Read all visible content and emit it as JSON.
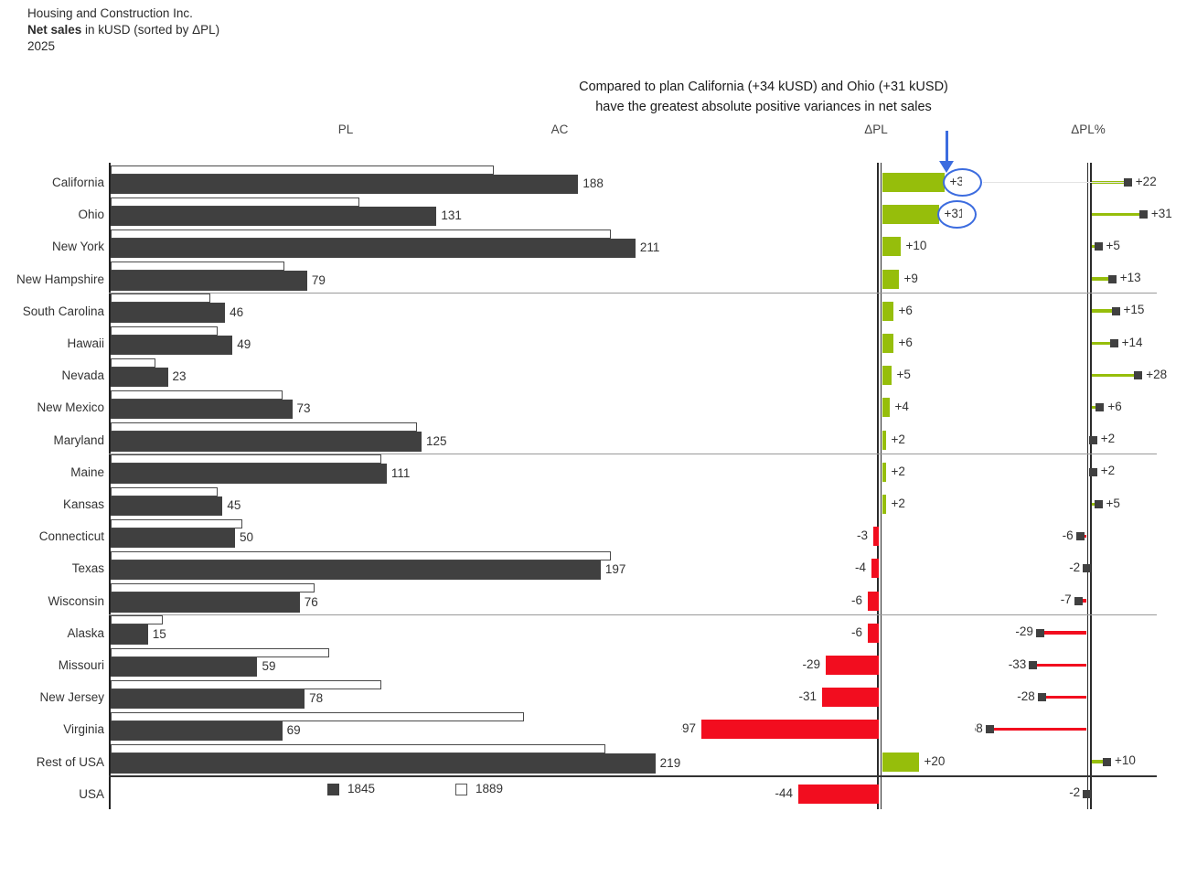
{
  "title": {
    "company": "Housing and Construction Inc.",
    "measure": "Net sales",
    "measure_suffix": " in kUSD (sorted by ΔPL)",
    "period": "2025"
  },
  "annotation": {
    "line1": "Compared to plan California (+34 kUSD) and Ohio (+31 kUSD)",
    "line2": "have the greatest absolute positive variances in net sales"
  },
  "headers": {
    "pl": "PL",
    "ac": "AC",
    "dpl": "ΔPL",
    "dplpct": "ΔPL%"
  },
  "legend": {
    "ac_total": "1845",
    "pl_total": "1889"
  },
  "colors": {
    "bar_dark": "#404040",
    "positive_green": "#96be0b",
    "negative_red": "#f20d1f",
    "annotation_blue": "#3c6cdf",
    "separator_gray": "#999999",
    "axis_dark": "#222222",
    "connector_gray": "#e3e3e3"
  },
  "chart_data": {
    "type": "bar",
    "title": "Net sales in kUSD (sorted by ΔPL)",
    "unit": "kUSD",
    "year": "2025",
    "columns": [
      "PL",
      "AC",
      "ΔPL",
      "ΔPL%"
    ],
    "rows": [
      {
        "name": "California",
        "pl": 154,
        "ac": 188,
        "ac_label": "188",
        "dpl": 34,
        "dpl_label": "+34",
        "pct": 22,
        "pct_label": "+22"
      },
      {
        "name": "Ohio",
        "pl": 100,
        "ac": 131,
        "ac_label": "131",
        "dpl": 31,
        "dpl_label": "+31",
        "pct": 31,
        "pct_label": "+31"
      },
      {
        "name": "New York",
        "pl": 201,
        "ac": 211,
        "ac_label": "211",
        "dpl": 10,
        "dpl_label": "+10",
        "pct": 5,
        "pct_label": "+5"
      },
      {
        "name": "New Hampshire",
        "pl": 70,
        "ac": 79,
        "ac_label": "79",
        "dpl": 9,
        "dpl_label": "+9",
        "pct": 13,
        "pct_label": "+13"
      },
      {
        "name": "South Carolina",
        "pl": 40,
        "ac": 46,
        "ac_label": "46",
        "dpl": 6,
        "dpl_label": "+6",
        "pct": 15,
        "pct_label": "+15"
      },
      {
        "name": "Hawaii",
        "pl": 43,
        "ac": 49,
        "ac_label": "49",
        "dpl": 6,
        "dpl_label": "+6",
        "pct": 14,
        "pct_label": "+14"
      },
      {
        "name": "Nevada",
        "pl": 18,
        "ac": 23,
        "ac_label": "23",
        "dpl": 5,
        "dpl_label": "+5",
        "pct": 28,
        "pct_label": "+28"
      },
      {
        "name": "New Mexico",
        "pl": 69,
        "ac": 73,
        "ac_label": "73",
        "dpl": 4,
        "dpl_label": "+4",
        "pct": 6,
        "pct_label": "+6"
      },
      {
        "name": "Maryland",
        "pl": 123,
        "ac": 125,
        "ac_label": "125",
        "dpl": 2,
        "dpl_label": "+2",
        "pct": 2,
        "pct_label": "+2"
      },
      {
        "name": "Maine",
        "pl": 109,
        "ac": 111,
        "ac_label": "111",
        "dpl": 2,
        "dpl_label": "+2",
        "pct": 2,
        "pct_label": "+2"
      },
      {
        "name": "Kansas",
        "pl": 43,
        "ac": 45,
        "ac_label": "45",
        "dpl": 2,
        "dpl_label": "+2",
        "pct": 5,
        "pct_label": "+5"
      },
      {
        "name": "Connecticut",
        "pl": 53,
        "ac": 50,
        "ac_label": "50",
        "dpl": -3,
        "dpl_label": "-3",
        "pct": -6,
        "pct_label": "-6"
      },
      {
        "name": "Texas",
        "pl": 201,
        "ac": 197,
        "ac_label": "197",
        "dpl": -4,
        "dpl_label": "-4",
        "pct": -2,
        "pct_label": "-2"
      },
      {
        "name": "Wisconsin",
        "pl": 82,
        "ac": 76,
        "ac_label": "76",
        "dpl": -6,
        "dpl_label": "-6",
        "pct": -7,
        "pct_label": "-7"
      },
      {
        "name": "Alaska",
        "pl": 21,
        "ac": 15,
        "ac_label": "15",
        "dpl": -6,
        "dpl_label": "-6",
        "pct": -29,
        "pct_label": "-29"
      },
      {
        "name": "Missouri",
        "pl": 88,
        "ac": 59,
        "ac_label": "59",
        "dpl": -29,
        "dpl_label": "-29",
        "pct": -33,
        "pct_label": "-33"
      },
      {
        "name": "New Jersey",
        "pl": 109,
        "ac": 78,
        "ac_label": "78",
        "dpl": -31,
        "dpl_label": "-31",
        "pct": -28,
        "pct_label": "-28"
      },
      {
        "name": "Virginia",
        "pl": 166,
        "ac": 69,
        "ac_label": "69",
        "dpl": -97,
        "dpl_label": "-97",
        "pct": -58,
        "pct_label": "-58"
      },
      {
        "name": "Rest of USA",
        "pl": 199,
        "ac": 219,
        "ac_label": "219",
        "dpl": 20,
        "dpl_label": "+20",
        "pct": 10,
        "pct_label": "+10"
      }
    ],
    "total": {
      "name": "USA",
      "pl": 1889,
      "ac": 1845,
      "dpl": -44,
      "dpl_label": "-44",
      "pct": -2,
      "pct_label": "-2"
    },
    "group_separators_after": [
      "New Hampshire",
      "Maryland",
      "Wisconsin"
    ],
    "total_separator_after": "Rest of USA",
    "highlighted_rows": [
      "California",
      "Ohio"
    ]
  }
}
